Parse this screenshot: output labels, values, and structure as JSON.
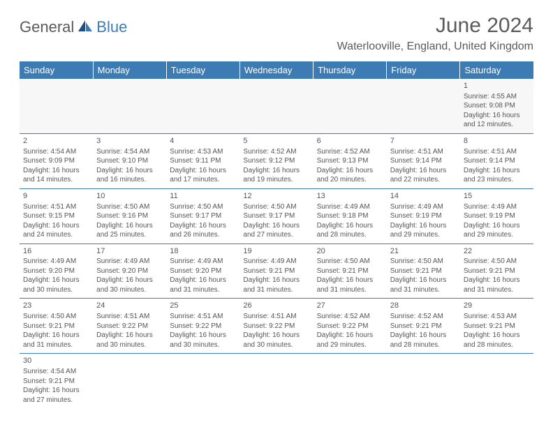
{
  "logo": {
    "part1": "General",
    "part2": "Blue"
  },
  "title": "June 2024",
  "location": "Waterlooville, England, United Kingdom",
  "headerColor": "#3d7bb5",
  "days": [
    "Sunday",
    "Monday",
    "Tuesday",
    "Wednesday",
    "Thursday",
    "Friday",
    "Saturday"
  ],
  "weeks": [
    [
      null,
      null,
      null,
      null,
      null,
      null,
      {
        "n": "1",
        "sr": "4:55 AM",
        "ss": "9:08 PM",
        "dl": "16 hours and 12 minutes."
      }
    ],
    [
      {
        "n": "2",
        "sr": "4:54 AM",
        "ss": "9:09 PM",
        "dl": "16 hours and 14 minutes."
      },
      {
        "n": "3",
        "sr": "4:54 AM",
        "ss": "9:10 PM",
        "dl": "16 hours and 16 minutes."
      },
      {
        "n": "4",
        "sr": "4:53 AM",
        "ss": "9:11 PM",
        "dl": "16 hours and 17 minutes."
      },
      {
        "n": "5",
        "sr": "4:52 AM",
        "ss": "9:12 PM",
        "dl": "16 hours and 19 minutes."
      },
      {
        "n": "6",
        "sr": "4:52 AM",
        "ss": "9:13 PM",
        "dl": "16 hours and 20 minutes."
      },
      {
        "n": "7",
        "sr": "4:51 AM",
        "ss": "9:14 PM",
        "dl": "16 hours and 22 minutes."
      },
      {
        "n": "8",
        "sr": "4:51 AM",
        "ss": "9:14 PM",
        "dl": "16 hours and 23 minutes."
      }
    ],
    [
      {
        "n": "9",
        "sr": "4:51 AM",
        "ss": "9:15 PM",
        "dl": "16 hours and 24 minutes."
      },
      {
        "n": "10",
        "sr": "4:50 AM",
        "ss": "9:16 PM",
        "dl": "16 hours and 25 minutes."
      },
      {
        "n": "11",
        "sr": "4:50 AM",
        "ss": "9:17 PM",
        "dl": "16 hours and 26 minutes."
      },
      {
        "n": "12",
        "sr": "4:50 AM",
        "ss": "9:17 PM",
        "dl": "16 hours and 27 minutes."
      },
      {
        "n": "13",
        "sr": "4:49 AM",
        "ss": "9:18 PM",
        "dl": "16 hours and 28 minutes."
      },
      {
        "n": "14",
        "sr": "4:49 AM",
        "ss": "9:19 PM",
        "dl": "16 hours and 29 minutes."
      },
      {
        "n": "15",
        "sr": "4:49 AM",
        "ss": "9:19 PM",
        "dl": "16 hours and 29 minutes."
      }
    ],
    [
      {
        "n": "16",
        "sr": "4:49 AM",
        "ss": "9:20 PM",
        "dl": "16 hours and 30 minutes."
      },
      {
        "n": "17",
        "sr": "4:49 AM",
        "ss": "9:20 PM",
        "dl": "16 hours and 30 minutes."
      },
      {
        "n": "18",
        "sr": "4:49 AM",
        "ss": "9:20 PM",
        "dl": "16 hours and 31 minutes."
      },
      {
        "n": "19",
        "sr": "4:49 AM",
        "ss": "9:21 PM",
        "dl": "16 hours and 31 minutes."
      },
      {
        "n": "20",
        "sr": "4:50 AM",
        "ss": "9:21 PM",
        "dl": "16 hours and 31 minutes."
      },
      {
        "n": "21",
        "sr": "4:50 AM",
        "ss": "9:21 PM",
        "dl": "16 hours and 31 minutes."
      },
      {
        "n": "22",
        "sr": "4:50 AM",
        "ss": "9:21 PM",
        "dl": "16 hours and 31 minutes."
      }
    ],
    [
      {
        "n": "23",
        "sr": "4:50 AM",
        "ss": "9:21 PM",
        "dl": "16 hours and 31 minutes."
      },
      {
        "n": "24",
        "sr": "4:51 AM",
        "ss": "9:22 PM",
        "dl": "16 hours and 30 minutes."
      },
      {
        "n": "25",
        "sr": "4:51 AM",
        "ss": "9:22 PM",
        "dl": "16 hours and 30 minutes."
      },
      {
        "n": "26",
        "sr": "4:51 AM",
        "ss": "9:22 PM",
        "dl": "16 hours and 30 minutes."
      },
      {
        "n": "27",
        "sr": "4:52 AM",
        "ss": "9:22 PM",
        "dl": "16 hours and 29 minutes."
      },
      {
        "n": "28",
        "sr": "4:52 AM",
        "ss": "9:21 PM",
        "dl": "16 hours and 28 minutes."
      },
      {
        "n": "29",
        "sr": "4:53 AM",
        "ss": "9:21 PM",
        "dl": "16 hours and 28 minutes."
      }
    ],
    [
      {
        "n": "30",
        "sr": "4:54 AM",
        "ss": "9:21 PM",
        "dl": "16 hours and 27 minutes."
      },
      null,
      null,
      null,
      null,
      null,
      null
    ]
  ],
  "labels": {
    "sunrise": "Sunrise:",
    "sunset": "Sunset:",
    "daylight": "Daylight:"
  }
}
